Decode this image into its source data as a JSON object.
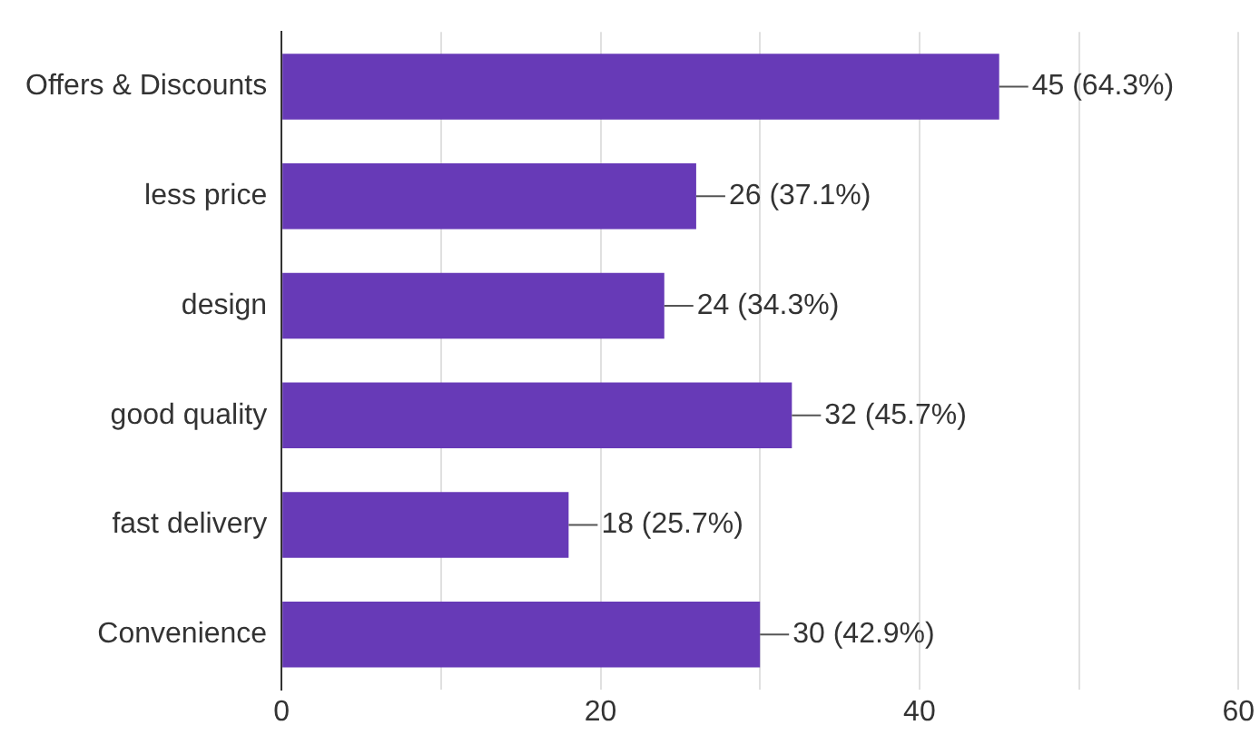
{
  "chart_data": {
    "type": "bar",
    "orientation": "horizontal",
    "categories": [
      "Offers & Discounts",
      "less price",
      "design",
      "good quality",
      "fast delivery",
      "Convenience"
    ],
    "values": [
      45,
      26,
      24,
      32,
      18,
      30
    ],
    "value_labels": [
      "45 (64.3%)",
      "26 (37.1%)",
      "24 (34.3%)",
      "32 (45.7%)",
      "18 (25.7%)",
      "30 (42.9%)"
    ],
    "color": "#673ab7",
    "xlim": [
      0,
      60
    ],
    "xticks": [
      0,
      {
        "value": 10,
        "label": null
      },
      20,
      {
        "value": 30,
        "label": null
      },
      40,
      {
        "value": 50,
        "label": null
      },
      60
    ],
    "grid": "x",
    "legend": false
  }
}
